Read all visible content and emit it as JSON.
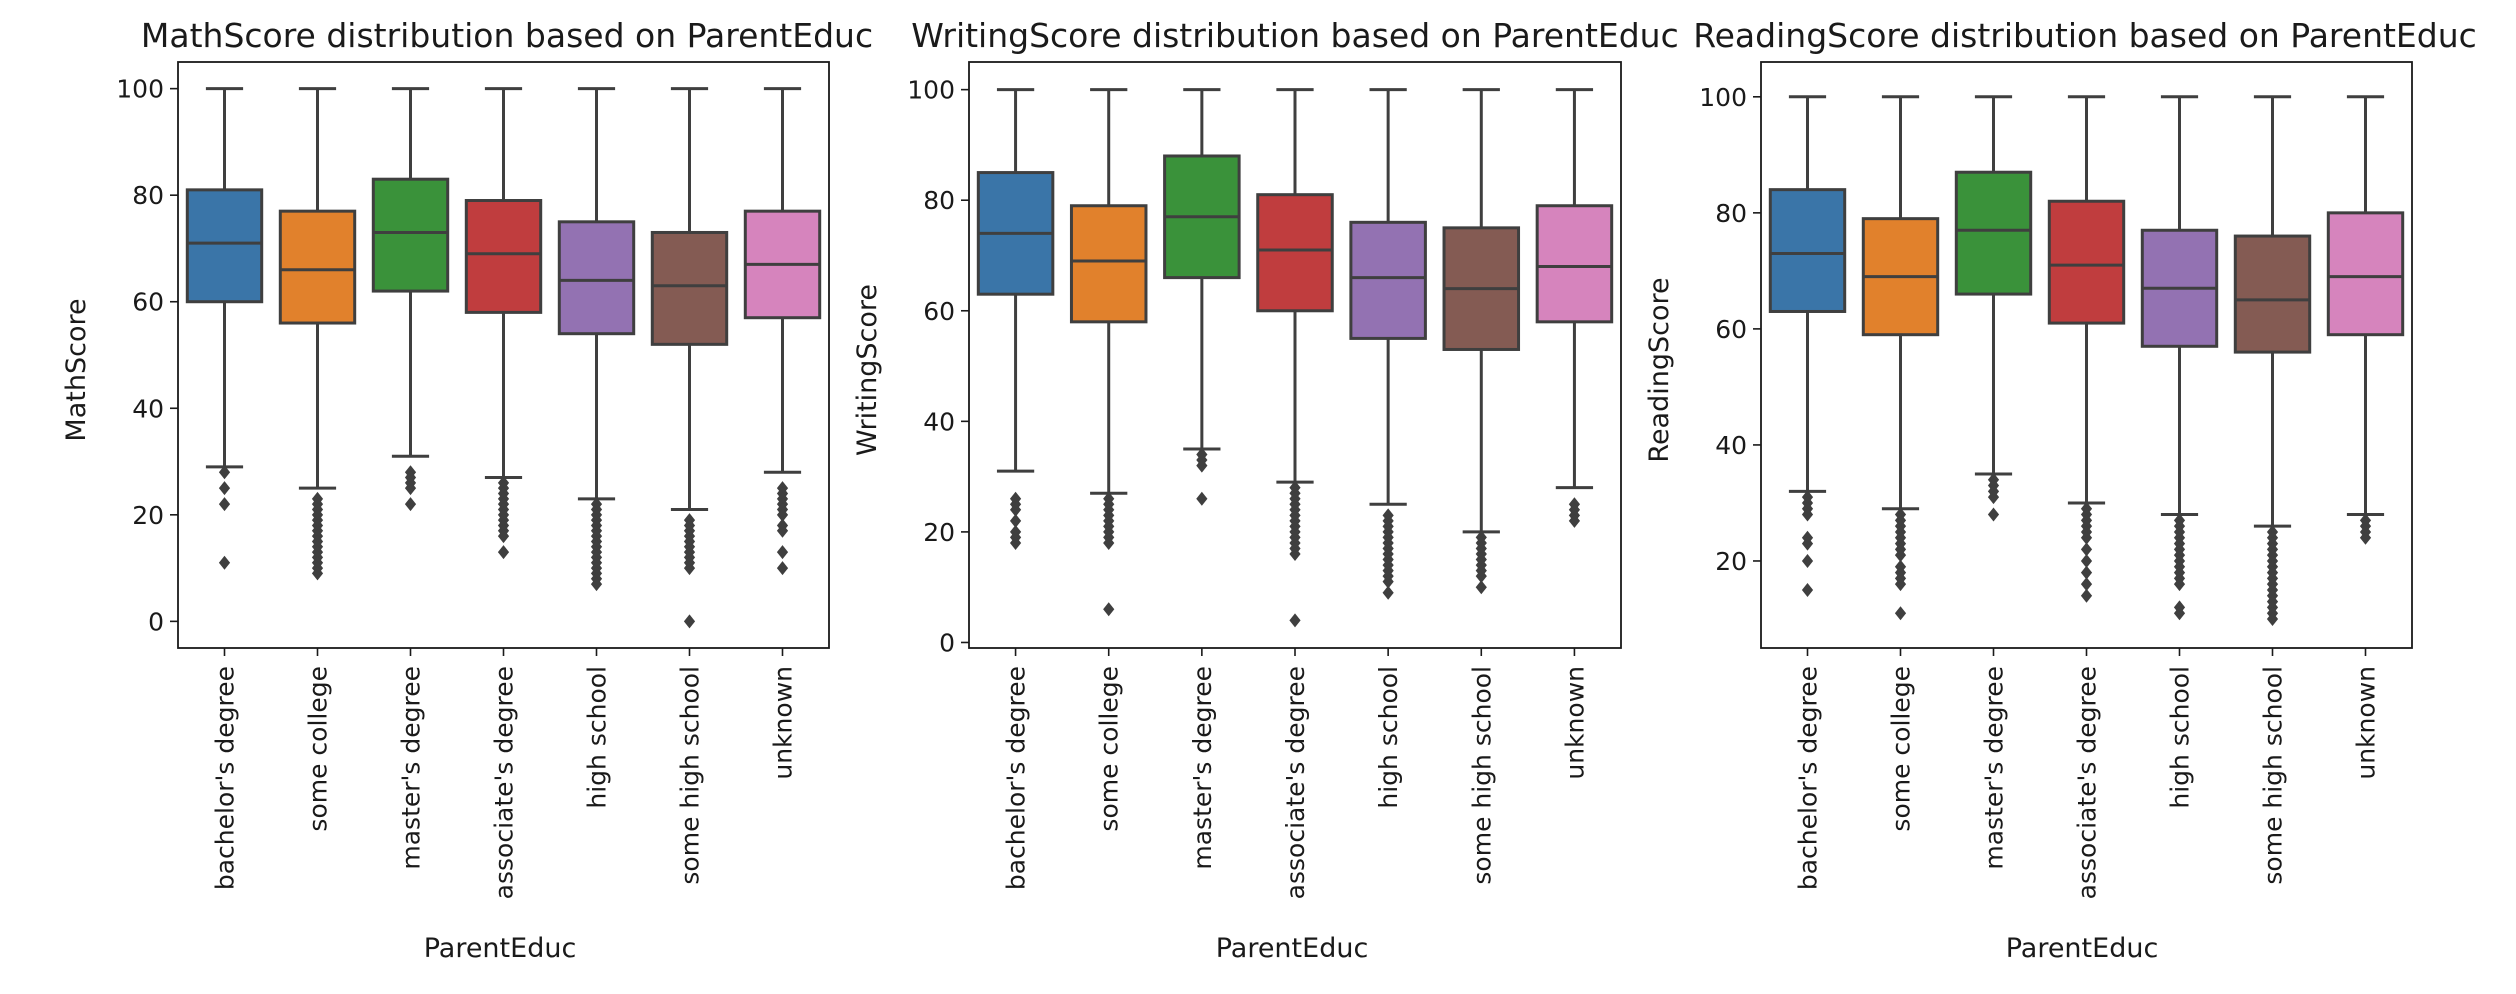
{
  "chart_data": [
    {
      "type": "box",
      "title": "MathScore distribution based on ParentEduc",
      "xlabel": "ParentEduc",
      "ylabel": "MathScore",
      "ylim": [
        -5,
        105
      ],
      "yticks": [
        0,
        20,
        40,
        60,
        80,
        100
      ],
      "categories": [
        "bachelor's degree",
        "some college",
        "master's degree",
        "associate's degree",
        "high school",
        "some high school",
        "unknown"
      ],
      "boxes": [
        {
          "q1": 60,
          "median": 71,
          "q3": 81,
          "whislo": 29,
          "whishi": 100,
          "fliers": [
            28,
            25,
            22,
            11
          ]
        },
        {
          "q1": 56,
          "median": 66,
          "q3": 77,
          "whislo": 25,
          "whishi": 100,
          "fliers": [
            23,
            22,
            21,
            20,
            19,
            18,
            17,
            16,
            15,
            14,
            13,
            12,
            11,
            10,
            9
          ]
        },
        {
          "q1": 62,
          "median": 73,
          "q3": 83,
          "whislo": 31,
          "whishi": 100,
          "fliers": [
            28,
            27,
            26,
            25,
            22
          ]
        },
        {
          "q1": 58,
          "median": 69,
          "q3": 79,
          "whislo": 27,
          "whishi": 100,
          "fliers": [
            26,
            25,
            24,
            23,
            22,
            21,
            20,
            19,
            18,
            17,
            16,
            13
          ]
        },
        {
          "q1": 54,
          "median": 64,
          "q3": 75,
          "whislo": 23,
          "whishi": 100,
          "fliers": [
            22,
            21,
            20,
            19,
            18,
            17,
            16,
            15,
            14,
            13,
            12,
            11,
            10,
            9,
            8,
            7
          ]
        },
        {
          "q1": 52,
          "median": 63,
          "q3": 73,
          "whislo": 21,
          "whishi": 100,
          "fliers": [
            19,
            18,
            17,
            16,
            15,
            14,
            13,
            12,
            11,
            10,
            0
          ]
        },
        {
          "q1": 57,
          "median": 67,
          "q3": 77,
          "whislo": 28,
          "whishi": 100,
          "fliers": [
            25,
            24,
            23,
            22,
            21,
            20,
            18,
            17,
            13,
            10
          ]
        }
      ]
    },
    {
      "type": "box",
      "title": "WritingScore distribution based on ParentEduc",
      "xlabel": "ParentEduc",
      "ylabel": "WritingScore",
      "ylim": [
        -1,
        105
      ],
      "yticks": [
        0,
        20,
        40,
        60,
        80,
        100
      ],
      "categories": [
        "bachelor's degree",
        "some college",
        "master's degree",
        "associate's degree",
        "high school",
        "some high school",
        "unknown"
      ],
      "boxes": [
        {
          "q1": 63,
          "median": 74,
          "q3": 85,
          "whislo": 31,
          "whishi": 100,
          "fliers": [
            26,
            25,
            24,
            22,
            20,
            19,
            18
          ]
        },
        {
          "q1": 58,
          "median": 69,
          "q3": 79,
          "whislo": 27,
          "whishi": 100,
          "fliers": [
            26,
            25,
            24,
            23,
            22,
            21,
            20,
            19,
            18,
            6
          ]
        },
        {
          "q1": 66,
          "median": 77,
          "q3": 88,
          "whislo": 35,
          "whishi": 100,
          "fliers": [
            34,
            33,
            32,
            26
          ]
        },
        {
          "q1": 60,
          "median": 71,
          "q3": 81,
          "whislo": 29,
          "whishi": 100,
          "fliers": [
            28,
            27,
            26,
            25,
            24,
            23,
            22,
            21,
            20,
            19,
            18,
            17,
            16,
            4
          ]
        },
        {
          "q1": 55,
          "median": 66,
          "q3": 76,
          "whislo": 25,
          "whishi": 100,
          "fliers": [
            23,
            22,
            21,
            20,
            19,
            18,
            17,
            16,
            15,
            14,
            13,
            12,
            11,
            9
          ]
        },
        {
          "q1": 53,
          "median": 64,
          "q3": 75,
          "whislo": 20,
          "whishi": 100,
          "fliers": [
            19,
            18,
            17,
            16,
            15,
            14,
            13,
            12,
            10
          ]
        },
        {
          "q1": 58,
          "median": 68,
          "q3": 79,
          "whislo": 28,
          "whishi": 100,
          "fliers": [
            25,
            24,
            23,
            22
          ]
        }
      ]
    },
    {
      "type": "box",
      "title": "ReadingScore distribution based on ParentEduc",
      "xlabel": "ParentEduc",
      "ylabel": "ReadingScore",
      "ylim": [
        5,
        106
      ],
      "yticks": [
        20,
        40,
        60,
        80,
        100
      ],
      "categories": [
        "bachelor's degree",
        "some college",
        "master's degree",
        "associate's degree",
        "high school",
        "some high school",
        "unknown"
      ],
      "boxes": [
        {
          "q1": 63,
          "median": 73,
          "q3": 84,
          "whislo": 32,
          "whishi": 100,
          "fliers": [
            31,
            30,
            29,
            28,
            24,
            23,
            20,
            15
          ]
        },
        {
          "q1": 59,
          "median": 69,
          "q3": 79,
          "whislo": 29,
          "whishi": 100,
          "fliers": [
            28,
            27,
            26,
            25,
            24,
            23,
            22,
            21,
            19,
            18,
            17,
            16,
            11
          ]
        },
        {
          "q1": 66,
          "median": 77,
          "q3": 87,
          "whislo": 35,
          "whishi": 100,
          "fliers": [
            34,
            33,
            32,
            31,
            28
          ]
        },
        {
          "q1": 61,
          "median": 71,
          "q3": 82,
          "whislo": 30,
          "whishi": 100,
          "fliers": [
            29,
            28,
            27,
            26,
            25,
            24,
            22,
            20,
            18,
            16,
            14
          ]
        },
        {
          "q1": 57,
          "median": 67,
          "q3": 77,
          "whislo": 28,
          "whishi": 100,
          "fliers": [
            27,
            26,
            25,
            24,
            23,
            22,
            21,
            20,
            19,
            18,
            17,
            16,
            12,
            11
          ]
        },
        {
          "q1": 56,
          "median": 65,
          "q3": 76,
          "whislo": 26,
          "whishi": 100,
          "fliers": [
            25,
            24,
            23,
            22,
            21,
            20,
            19,
            18,
            17,
            16,
            15,
            14,
            13,
            12,
            11,
            10
          ]
        },
        {
          "q1": 59,
          "median": 69,
          "q3": 80,
          "whislo": 28,
          "whishi": 100,
          "fliers": [
            27,
            26,
            25,
            24
          ]
        }
      ]
    }
  ],
  "colors": [
    "#3a75a8",
    "#e1812c",
    "#3a923a",
    "#c03d3e",
    "#9372b2",
    "#845b53",
    "#d684bd"
  ]
}
